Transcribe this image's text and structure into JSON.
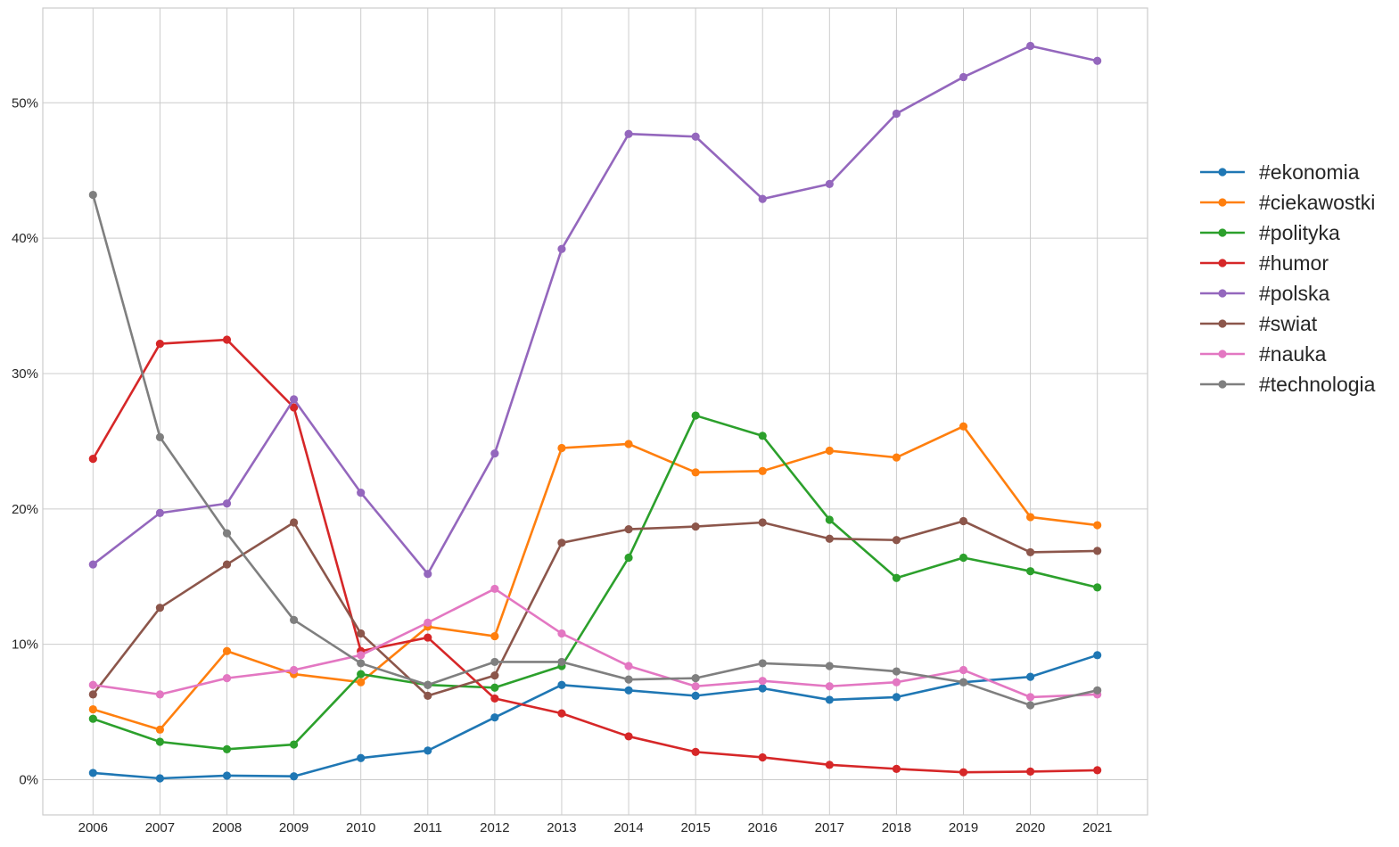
{
  "chart_data": {
    "type": "line",
    "title": "",
    "xlabel": "",
    "ylabel": "",
    "grid": true,
    "legend_position": "right",
    "x": [
      2006,
      2007,
      2008,
      2009,
      2010,
      2011,
      2012,
      2013,
      2014,
      2015,
      2016,
      2017,
      2018,
      2019,
      2020,
      2021
    ],
    "x_tick_labels": [
      "2006",
      "2007",
      "2008",
      "2009",
      "2010",
      "2011",
      "2012",
      "2013",
      "2014",
      "2015",
      "2016",
      "2017",
      "2018",
      "2019",
      "2020",
      "2021"
    ],
    "xlim": [
      2005.25,
      2021.75
    ],
    "y_ticks": [
      0,
      10,
      20,
      30,
      40,
      50
    ],
    "y_tick_labels": [
      "0%",
      "10%",
      "20%",
      "30%",
      "40%",
      "50%"
    ],
    "ylim": [
      -2.6,
      57.0
    ],
    "y_unit": "%",
    "series": [
      {
        "name": "#ekonomia",
        "color": "#1f77b4",
        "values": [
          0.5,
          0.1,
          0.3,
          0.25,
          1.6,
          2.15,
          4.6,
          7.0,
          6.6,
          6.2,
          6.75,
          5.9,
          6.1,
          7.2,
          7.6,
          9.2
        ]
      },
      {
        "name": "#ciekawostki",
        "color": "#ff7f0e",
        "values": [
          5.2,
          3.7,
          9.5,
          7.8,
          7.2,
          11.3,
          10.6,
          24.5,
          24.8,
          22.7,
          22.8,
          24.3,
          23.8,
          26.1,
          19.4,
          18.8
        ]
      },
      {
        "name": "#polityka",
        "color": "#2ca02c",
        "values": [
          4.5,
          2.8,
          2.25,
          2.6,
          7.8,
          7.0,
          6.8,
          8.4,
          16.4,
          26.9,
          25.4,
          19.2,
          14.9,
          16.4,
          15.4,
          14.2
        ]
      },
      {
        "name": "#humor",
        "color": "#d62728",
        "values": [
          23.7,
          32.2,
          32.5,
          27.5,
          9.5,
          10.5,
          6.0,
          4.9,
          3.2,
          2.05,
          1.65,
          1.1,
          0.8,
          0.55,
          0.6,
          0.7
        ]
      },
      {
        "name": "#polska",
        "color": "#9467bd",
        "values": [
          15.9,
          19.7,
          20.4,
          28.1,
          21.2,
          15.2,
          24.1,
          39.2,
          47.7,
          47.5,
          42.9,
          44.0,
          49.2,
          51.9,
          54.2,
          53.1
        ]
      },
      {
        "name": "#swiat",
        "color": "#8c564b",
        "values": [
          6.3,
          12.7,
          15.9,
          19.0,
          10.8,
          6.2,
          7.7,
          17.5,
          18.5,
          18.7,
          19.0,
          17.8,
          17.7,
          19.1,
          16.8,
          16.9
        ]
      },
      {
        "name": "#nauka",
        "color": "#e377c2",
        "values": [
          7.0,
          6.3,
          7.5,
          8.1,
          9.2,
          11.6,
          14.1,
          10.8,
          8.4,
          6.9,
          7.3,
          6.9,
          7.2,
          8.1,
          6.1,
          6.3
        ]
      },
      {
        "name": "#technologia",
        "color": "#7f7f7f",
        "values": [
          43.2,
          25.3,
          18.2,
          11.8,
          8.6,
          7.0,
          8.7,
          8.7,
          7.4,
          7.5,
          8.6,
          8.4,
          8.0,
          7.2,
          5.5,
          6.6
        ]
      }
    ]
  }
}
